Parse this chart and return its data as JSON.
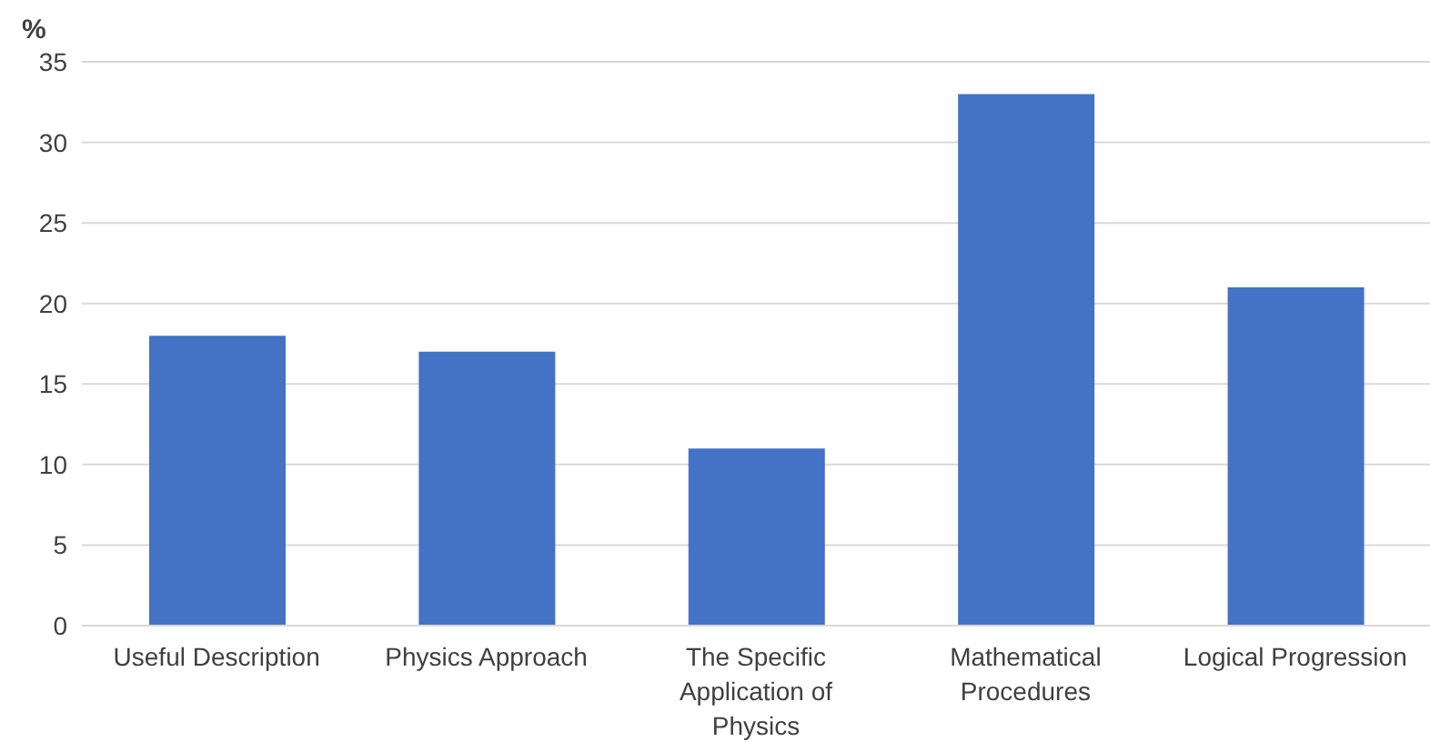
{
  "chart_data": {
    "type": "bar",
    "ylabel": "%",
    "categories": [
      "Useful Description",
      "Physics Approach",
      "The Specific Application of Physics",
      "Mathematical Procedures",
      "Logical Progression"
    ],
    "values": [
      18,
      17,
      11,
      33,
      21
    ],
    "color": "#4472c4",
    "ylim": [
      0,
      35
    ],
    "yticks": [
      0,
      5,
      10,
      15,
      20,
      25,
      30,
      35
    ],
    "grid": "y"
  }
}
